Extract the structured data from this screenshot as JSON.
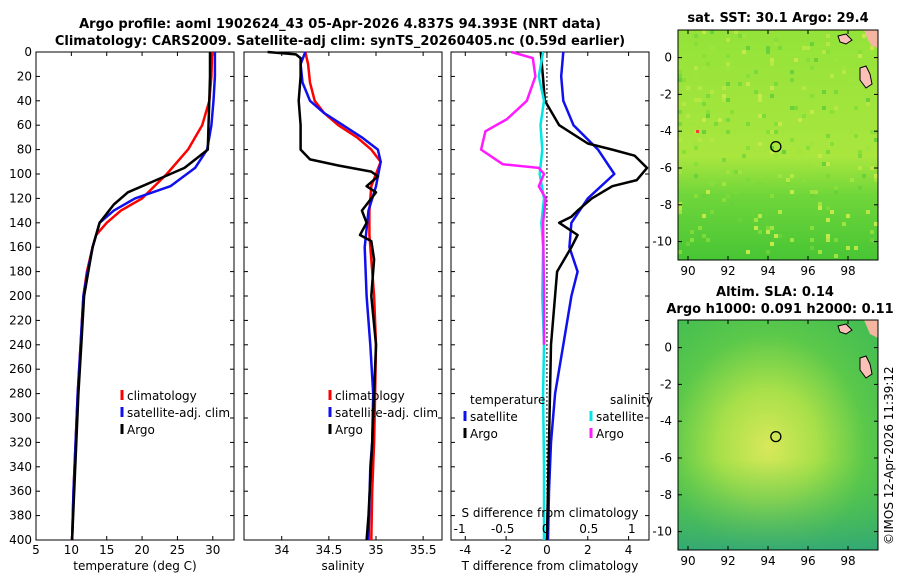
{
  "header": {
    "title_line1": "Argo profile: aoml 1902624_43 05-Apr-2026 4.837S 94.393E (NRT data)",
    "title_line2": "Climatology: CARS2009. Satellite-adj clim: synTS_20260405.nc (0.59d earlier)"
  },
  "copyright": "©IMOS 12-Apr-2026 11:39:12",
  "colors": {
    "climatology": "#ff0000",
    "satellite": "#1010ee",
    "argo": "#000000",
    "sal_sat": "#00e5e5",
    "sal_argo": "#ff1aff"
  },
  "chart_data": [
    {
      "id": "temperature",
      "type": "line",
      "xlabel": "temperature (deg C)",
      "ylabel": "",
      "xlim": [
        5,
        33
      ],
      "ylim": [
        0,
        400
      ],
      "y_inverted": true,
      "xticks": [
        5,
        10,
        15,
        20,
        25,
        30
      ],
      "yticks": [
        0,
        20,
        40,
        60,
        80,
        100,
        120,
        140,
        160,
        180,
        200,
        220,
        240,
        260,
        280,
        300,
        320,
        340,
        360,
        380,
        400
      ],
      "legend": [
        "climatology",
        "satellite-adj. clim",
        "Argo"
      ],
      "series": [
        {
          "name": "climatology",
          "color": "#ff0000",
          "x": [
            29.9,
            29.8,
            29.5,
            28.5,
            26.5,
            23.5,
            20,
            17,
            15,
            13.5,
            13,
            12.2,
            11.7,
            11.3,
            10.9,
            10.6,
            10.3,
            10.1
          ],
          "y": [
            0,
            20,
            40,
            60,
            80,
            100,
            120,
            130,
            140,
            150,
            160,
            180,
            200,
            240,
            280,
            320,
            360,
            400
          ]
        },
        {
          "name": "satellite-adj. clim",
          "color": "#1010ee",
          "x": [
            30.3,
            30.3,
            30.1,
            29.8,
            29.2,
            27.5,
            24,
            19,
            16,
            14,
            13,
            12.3,
            11.7,
            11.3,
            10.9,
            10.6,
            10.3,
            10.1
          ],
          "y": [
            0,
            20,
            40,
            60,
            80,
            95,
            110,
            120,
            130,
            140,
            160,
            180,
            200,
            240,
            280,
            320,
            360,
            400
          ]
        },
        {
          "name": "Argo",
          "color": "#000000",
          "x": [
            29.6,
            29.6,
            29.5,
            29.4,
            29.3,
            26,
            22,
            18,
            16,
            14,
            13,
            12.4,
            11.8,
            11.4,
            11,
            10.7,
            10.4,
            10.1
          ],
          "y": [
            0,
            20,
            40,
            60,
            80,
            95,
            105,
            115,
            125,
            140,
            160,
            180,
            200,
            240,
            280,
            320,
            360,
            400
          ]
        }
      ]
    },
    {
      "id": "salinity",
      "type": "line",
      "xlabel": "salinity",
      "xlim": [
        33.6,
        35.7
      ],
      "ylim": [
        0,
        400
      ],
      "y_inverted": true,
      "xticks": [
        34,
        34.5,
        35,
        35.5
      ],
      "legend": [
        "climatology",
        "satellite-adj. clim",
        "Argo"
      ],
      "series": [
        {
          "name": "climatology",
          "color": "#ff0000",
          "x": [
            34.25,
            34.28,
            34.3,
            34.35,
            34.45,
            34.6,
            34.8,
            34.95,
            35.05,
            34.95,
            34.93,
            34.93,
            34.95,
            34.98,
            35.0,
            34.99,
            34.98,
            34.96,
            34.95
          ],
          "y": [
            0,
            10,
            25,
            40,
            50,
            60,
            70,
            80,
            90,
            110,
            130,
            150,
            170,
            200,
            240,
            280,
            320,
            360,
            400
          ]
        },
        {
          "name": "satellite-adj. clim",
          "color": "#1010ee",
          "x": [
            34.25,
            34.2,
            34.22,
            34.3,
            34.45,
            34.65,
            34.85,
            35.02,
            35.05,
            35.0,
            34.92,
            34.88,
            34.9,
            34.94,
            34.97,
            34.96,
            34.94,
            34.93,
            34.92
          ],
          "y": [
            0,
            10,
            25,
            40,
            50,
            60,
            70,
            80,
            90,
            110,
            130,
            160,
            200,
            240,
            280,
            320,
            340,
            370,
            400
          ]
        },
        {
          "name": "Argo",
          "color": "#000000",
          "x": [
            33.85,
            34.15,
            34.2,
            34.2,
            34.18,
            34.2,
            34.2,
            34.3,
            34.6,
            34.95,
            35.02,
            34.9,
            35.0,
            34.85,
            34.9,
            34.83,
            34.95,
            34.98,
            34.95,
            35.0,
            34.98,
            34.96,
            34.94,
            34.92,
            34.9
          ],
          "y": [
            0,
            2,
            5,
            20,
            40,
            60,
            80,
            88,
            93,
            98,
            102,
            110,
            115,
            130,
            140,
            150,
            155,
            170,
            200,
            240,
            280,
            320,
            350,
            380,
            400
          ]
        }
      ]
    },
    {
      "id": "difference",
      "type": "line",
      "xlabel": "T difference from climatology",
      "top_xlabel": "S difference from climatology",
      "xlim": [
        -4.7,
        5.0
      ],
      "ylim": [
        0,
        400
      ],
      "y_inverted": true,
      "xticks": [
        -4,
        -2,
        0,
        2,
        4
      ],
      "top_xlim": [
        -1.1,
        1.2
      ],
      "top_xticks": [
        -1,
        -0.5,
        0,
        0.5,
        1
      ],
      "legend_left_title": "temperature",
      "legend_right_title": "salinity",
      "legend_left": [
        "satellite",
        "Argo"
      ],
      "legend_right": [
        "satellite",
        "Argo"
      ],
      "series": [
        {
          "name": "T satellite",
          "color": "#1010ee",
          "axis": "bottom",
          "x": [
            0.8,
            0.7,
            0.8,
            1.3,
            2.5,
            3.3,
            2.0,
            1.2,
            1.1,
            1.5,
            1.2,
            0.8,
            0.4,
            0.2,
            0.1,
            0.05
          ],
          "y": [
            0,
            20,
            40,
            60,
            80,
            100,
            120,
            140,
            160,
            180,
            200,
            240,
            280,
            320,
            360,
            400
          ]
        },
        {
          "name": "T Argo",
          "color": "#000000",
          "axis": "bottom",
          "x": [
            -0.3,
            -0.2,
            -0.1,
            0.6,
            2.0,
            3.2,
            4.3,
            4.9,
            4.4,
            3.2,
            2.2,
            1.5,
            1.2,
            0.6,
            1.5,
            1.2,
            0.5,
            0.2,
            0.1,
            0.0
          ],
          "y": [
            0,
            20,
            40,
            60,
            75,
            80,
            85,
            95,
            105,
            110,
            120,
            130,
            135,
            140,
            150,
            160,
            180,
            240,
            320,
            400
          ]
        },
        {
          "name": "S satellite",
          "color": "#00e5e5",
          "axis": "top",
          "x": [
            -0.03,
            -0.08,
            -0.02,
            -0.06,
            -0.04,
            -0.07,
            -0.02,
            -0.05,
            -0.03,
            -0.04,
            -0.02,
            -0.03,
            -0.02,
            -0.02
          ],
          "y": [
            0,
            20,
            40,
            60,
            80,
            100,
            120,
            140,
            160,
            200,
            240,
            280,
            340,
            400
          ]
        },
        {
          "name": "S Argo",
          "color": "#ff1aff",
          "axis": "top",
          "x": [
            -0.4,
            -0.15,
            -0.12,
            -0.22,
            -0.45,
            -0.7,
            -0.75,
            -0.5,
            -0.08,
            -0.02,
            -0.08,
            0.0,
            -0.03,
            -0.02,
            -0.02
          ],
          "y": [
            0,
            5,
            20,
            40,
            55,
            65,
            80,
            92,
            95,
            100,
            110,
            120,
            140,
            200,
            240
          ]
        }
      ]
    },
    {
      "id": "sst_map",
      "type": "heatmap",
      "title": "sat. SST: 30.1 Argo: 29.4",
      "xlim": [
        89.5,
        99.5
      ],
      "ylim": [
        -11,
        1.5
      ],
      "xticks": [
        90,
        92,
        94,
        96,
        98
      ],
      "yticks": [
        0,
        -2,
        -4,
        -6,
        -8,
        -10
      ],
      "marker": {
        "lon": 94.393,
        "lat": -4.837
      }
    },
    {
      "id": "sla_map",
      "type": "heatmap",
      "title": "Altim. SLA: 0.14",
      "subtitle": "Argo h1000: 0.091 h2000: 0.11",
      "xlim": [
        89.5,
        99.5
      ],
      "ylim": [
        -11,
        1.5
      ],
      "xticks": [
        90,
        92,
        94,
        96,
        98
      ],
      "yticks": [
        0,
        -2,
        -4,
        -6,
        -8,
        -10
      ],
      "marker": {
        "lon": 94.393,
        "lat": -4.837
      }
    }
  ]
}
